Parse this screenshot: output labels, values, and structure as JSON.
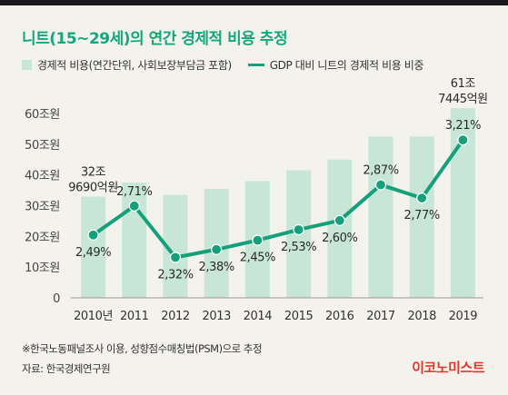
{
  "title": "니트(15~29세)의 연간 경제적 비용 추정",
  "legend": {
    "bar_label": "경제적 비용(연간단위, 사회보장부담금 포함)",
    "line_label": "GDP 대비 니트의 경제적 비용 비중"
  },
  "footnote": "※한국노동패널조사 이용, 성향점수매칭법(PSM)으로 추정",
  "source": "자료: 한국경제연구원",
  "brand": "이코노미스트",
  "colors": {
    "title": "#14a67d",
    "bar": "#c7e6d8",
    "line": "#13a07a",
    "brand": "#e0362c"
  },
  "chart_data": {
    "type": "bar",
    "categories": [
      "2010년",
      "2011",
      "2012",
      "2013",
      "2014",
      "2015",
      "2016",
      "2017",
      "2018",
      "2019"
    ],
    "y_ticks": [
      "0",
      "10조원",
      "20조원",
      "30조원",
      "40조원",
      "50조원",
      "60조원"
    ],
    "ylim": [
      0,
      60
    ],
    "series": [
      {
        "type": "bar",
        "unit": "조원",
        "values": [
          32.97,
          37.5,
          33.5,
          35.5,
          38.0,
          41.5,
          45.0,
          52.5,
          52.5,
          61.74
        ]
      },
      {
        "type": "line",
        "unit": "%",
        "values": [
          2.49,
          2.71,
          2.32,
          2.38,
          2.45,
          2.53,
          2.6,
          2.87,
          2.77,
          3.21
        ],
        "labels": [
          "2,49%",
          "2,71%",
          "2,32%",
          "2,38%",
          "2,45%",
          "2,53%",
          "2,60%",
          "2,87%",
          "2,77%",
          "3,21%"
        ]
      }
    ],
    "bar_annotations": [
      {
        "index": 0,
        "lines": [
          "32조",
          "9690억원"
        ]
      },
      {
        "index": 9,
        "lines": [
          "61조",
          "7445억원"
        ]
      }
    ]
  }
}
